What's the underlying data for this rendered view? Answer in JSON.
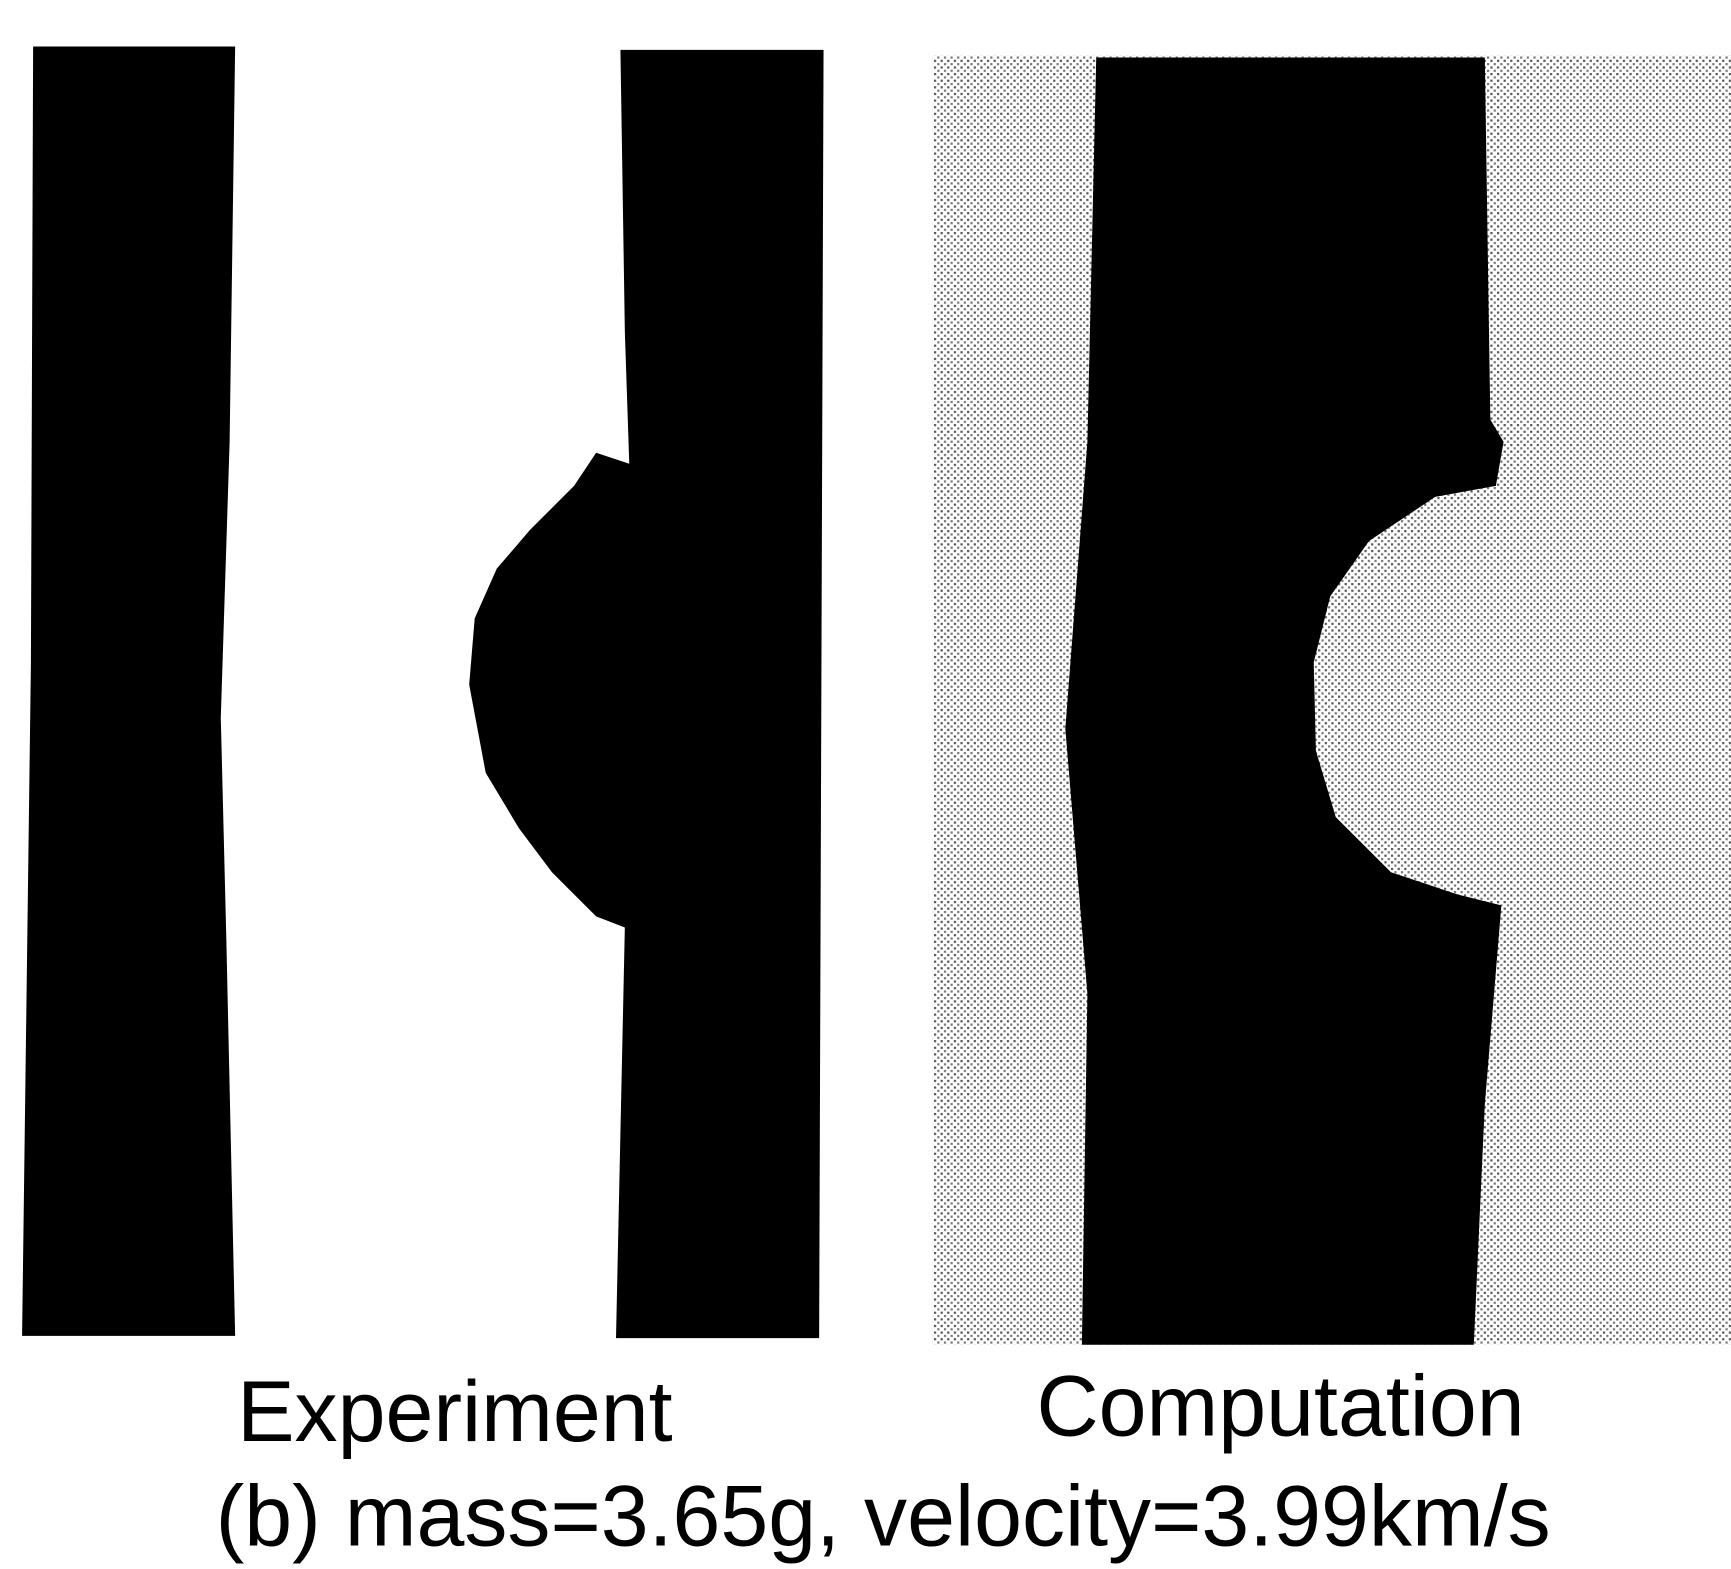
{
  "figure": {
    "labels": [
      "Experiment",
      "Computation"
    ],
    "caption": "(b) mass=3.65g, velocity=3.99km/s"
  }
}
